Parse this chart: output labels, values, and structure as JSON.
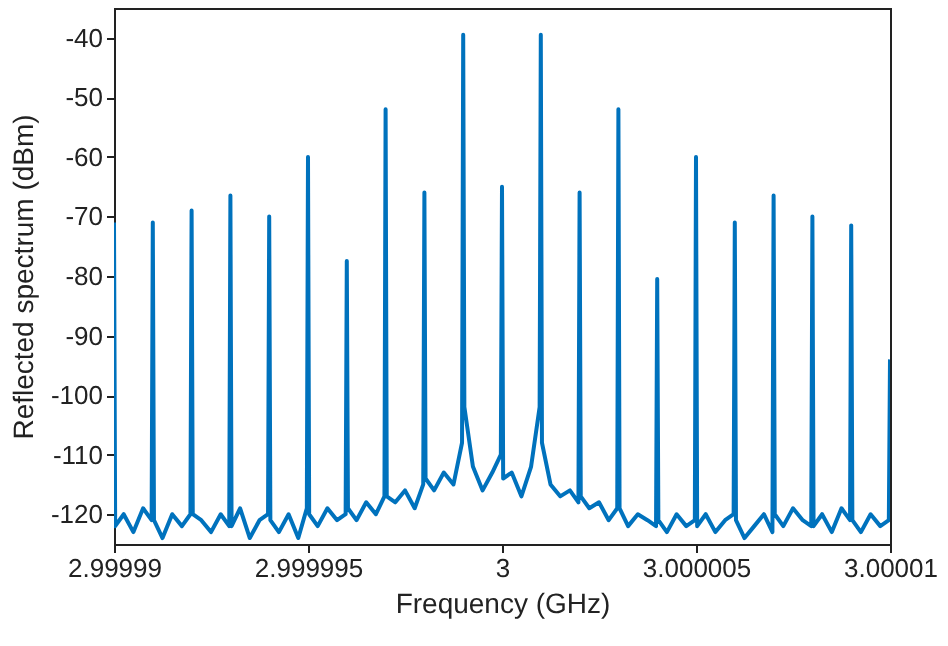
{
  "chart_data": {
    "type": "line",
    "xlabel": "Frequency (GHz)",
    "ylabel": "Reflected spectrum (dBm)",
    "color": "#0072bd",
    "xlim": [
      2.99999,
      3.00001
    ],
    "ylim": [
      -125,
      -35
    ],
    "xticks": [
      2.99999,
      2.999995,
      3,
      3.000005,
      3.00001
    ],
    "yticks": [
      -120,
      -110,
      -100,
      -90,
      -80,
      -70,
      -60,
      -50,
      -40
    ],
    "x": [
      2.99999,
      2.99999003,
      2.99999025,
      2.9999905,
      2.99999075,
      2.99999097,
      2.999991,
      2.99999103,
      2.99999125,
      2.9999915,
      2.99999175,
      2.99999197,
      2.999992,
      2.99999203,
      2.99999225,
      2.9999925,
      2.99999275,
      2.99999297,
      2.999993,
      2.99999303,
      2.99999325,
      2.9999935,
      2.99999375,
      2.99999397,
      2.999994,
      2.99999403,
      2.99999425,
      2.9999945,
      2.99999475,
      2.99999497,
      2.999995,
      2.99999503,
      2.99999525,
      2.9999955,
      2.99999575,
      2.99999597,
      2.999996,
      2.99999603,
      2.99999625,
      2.9999965,
      2.99999675,
      2.99999697,
      2.999997,
      2.99999703,
      2.99999725,
      2.9999975,
      2.99999775,
      2.99999797,
      2.999998,
      2.99999803,
      2.99999825,
      2.9999985,
      2.99999875,
      2.99999897,
      2.999999,
      2.99999903,
      2.99999925,
      2.9999995,
      2.99999975,
      2.99999997,
      3,
      3.00000003,
      3.00000025,
      3.0000005,
      3.00000075,
      3.00000097,
      3.000001,
      3.00000103,
      3.00000125,
      3.0000015,
      3.00000175,
      3.00000197,
      3.000002,
      3.00000203,
      3.00000225,
      3.0000025,
      3.00000275,
      3.00000297,
      3.000003,
      3.00000303,
      3.00000325,
      3.0000035,
      3.00000375,
      3.00000397,
      3.000004,
      3.00000403,
      3.00000425,
      3.0000045,
      3.00000475,
      3.00000497,
      3.000005,
      3.00000503,
      3.00000525,
      3.0000055,
      3.00000575,
      3.00000597,
      3.000006,
      3.00000603,
      3.00000625,
      3.0000065,
      3.00000675,
      3.00000697,
      3.000007,
      3.00000703,
      3.00000725,
      3.0000075,
      3.00000775,
      3.00000797,
      3.000008,
      3.00000803,
      3.00000825,
      3.0000085,
      3.00000875,
      3.00000897,
      3.000009,
      3.00000903,
      3.00000925,
      3.0000095,
      3.00000975,
      3.00000997,
      3.00001
    ],
    "values": [
      -71,
      -122,
      -120,
      -123,
      -119,
      -121,
      -71,
      -121,
      -124,
      -120,
      -122,
      -120,
      -69,
      -120,
      -121,
      -123,
      -120,
      -122,
      -66.5,
      -122,
      -119,
      -124,
      -121,
      -120,
      -70,
      -121,
      -123,
      -120,
      -124,
      -119,
      -60,
      -120,
      -122,
      -119,
      -121,
      -120,
      -77.5,
      -119,
      -121,
      -118,
      -120,
      -117,
      -52,
      -117,
      -118,
      -116,
      -119,
      -115,
      -66,
      -114,
      -116,
      -113,
      -115,
      -108,
      -39.5,
      -102,
      -112,
      -116,
      -113,
      -110,
      -65,
      -114,
      -113,
      -117,
      -112,
      -102,
      -39.5,
      -108,
      -115,
      -117,
      -116,
      -118,
      -66,
      -117,
      -119,
      -118,
      -121,
      -119,
      -52,
      -119,
      -122,
      -120,
      -121,
      -122,
      -80.5,
      -121,
      -123,
      -120,
      -122,
      -121,
      -60,
      -122,
      -120,
      -123,
      -121,
      -120,
      -71,
      -121,
      -124,
      -122,
      -120,
      -123,
      -66.5,
      -120,
      -122,
      -119,
      -121,
      -122,
      -70,
      -122,
      -120,
      -123,
      -119,
      -121,
      -71.5,
      -121,
      -123,
      -120,
      -122,
      -121,
      -94
    ]
  }
}
